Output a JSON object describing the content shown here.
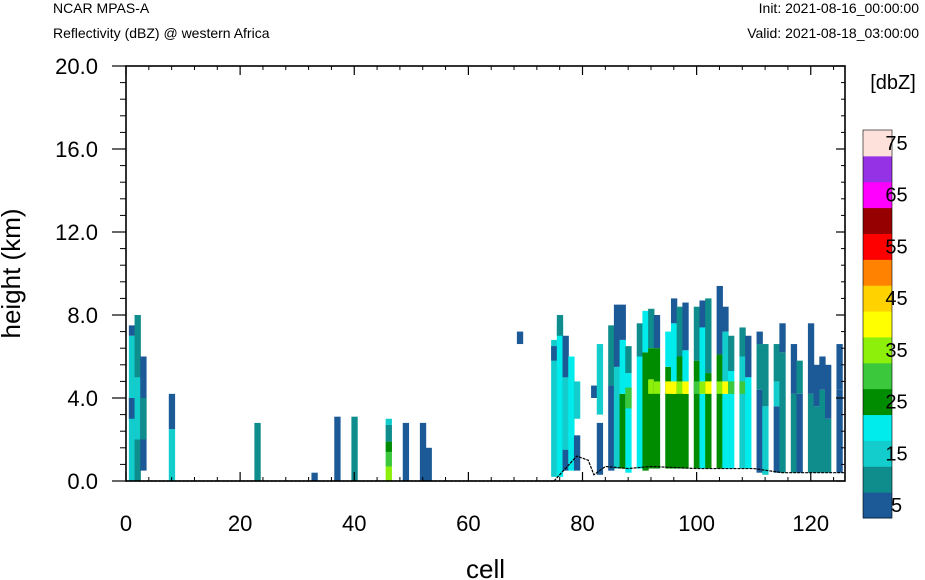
{
  "header": {
    "model": "NCAR MPAS-A",
    "field": "Reflectivity (dBZ) @ western Africa",
    "init": "Init: 2021-08-16_00:00:00",
    "valid": "Valid: 2021-08-18_03:00:00"
  },
  "chart_data": {
    "type": "heatmap",
    "title": "Reflectivity (dBZ) @ western Africa",
    "xlabel": "cell",
    "ylabel": "height (km)",
    "xlim": [
      0,
      126
    ],
    "ylim": [
      0,
      20
    ],
    "xticks": [
      0,
      20,
      40,
      60,
      80,
      100,
      120
    ],
    "yticks": [
      0.0,
      4.0,
      8.0,
      12.0,
      16.0,
      20.0
    ],
    "ytick_labels": [
      "0.0",
      "4.0",
      "8.0",
      "12.0",
      "16.0",
      "20.0"
    ],
    "colorbar": {
      "unit": "[dbZ]",
      "levels": [
        5,
        10,
        15,
        20,
        25,
        30,
        35,
        40,
        45,
        50,
        55,
        60,
        65,
        70,
        75
      ],
      "labeled_levels": [
        "5",
        "15",
        "25",
        "35",
        "45",
        "55",
        "65",
        "75"
      ],
      "colors": [
        "#1b5a96",
        "#0f8c8c",
        "#13cdcd",
        "#00ebeb",
        "#008c00",
        "#3cc83c",
        "#8cf00a",
        "#ffff00",
        "#ffd200",
        "#ff8200",
        "#ff0000",
        "#960000",
        "#ff00ff",
        "#9632e6",
        "#ffe1dc"
      ]
    },
    "columns": [
      {
        "x": 1,
        "segments": [
          [
            0,
            7,
            15
          ],
          [
            3,
            4,
            5
          ],
          [
            7,
            7.5,
            5
          ]
        ]
      },
      {
        "x": 2,
        "segments": [
          [
            0,
            8,
            10
          ],
          [
            2,
            5,
            15
          ]
        ]
      },
      {
        "x": 3,
        "segments": [
          [
            0.5,
            6,
            5
          ],
          [
            2,
            4,
            10
          ]
        ]
      },
      {
        "x": 8,
        "segments": [
          [
            0,
            2.5,
            15
          ],
          [
            2.5,
            4.2,
            5
          ]
        ]
      },
      {
        "x": 23,
        "segments": [
          [
            0,
            2.8,
            10
          ]
        ]
      },
      {
        "x": 33,
        "segments": [
          [
            0,
            0.4,
            5
          ]
        ]
      },
      {
        "x": 37,
        "segments": [
          [
            0,
            3.1,
            5
          ]
        ]
      },
      {
        "x": 40,
        "segments": [
          [
            0,
            3.1,
            10
          ]
        ]
      },
      {
        "x": 46,
        "segments": [
          [
            0,
            0.7,
            35
          ],
          [
            0.7,
            1.4,
            30
          ],
          [
            1.4,
            1.9,
            25
          ],
          [
            1.9,
            2.7,
            10
          ],
          [
            2.7,
            3.0,
            15
          ]
        ]
      },
      {
        "x": 49,
        "segments": [
          [
            0,
            2.8,
            5
          ]
        ]
      },
      {
        "x": 52,
        "segments": [
          [
            0,
            2.8,
            5
          ]
        ]
      },
      {
        "x": 53,
        "segments": [
          [
            0,
            1.6,
            5
          ]
        ]
      },
      {
        "x": 69,
        "segments": [
          [
            6.6,
            7.2,
            5
          ]
        ]
      },
      {
        "x": 75,
        "segments": [
          [
            0.2,
            6.8,
            15
          ],
          [
            5.8,
            6.5,
            5
          ]
        ]
      },
      {
        "x": 76,
        "segments": [
          [
            0.2,
            7.6,
            20
          ],
          [
            7,
            8,
            10
          ]
        ]
      },
      {
        "x": 77,
        "segments": [
          [
            0.5,
            7,
            5
          ],
          [
            1.5,
            5,
            15
          ]
        ]
      },
      {
        "x": 78,
        "segments": [
          [
            0.5,
            6,
            20
          ]
        ]
      },
      {
        "x": 79,
        "segments": [
          [
            0.5,
            2.2,
            5
          ],
          [
            3,
            4.8,
            15
          ]
        ]
      },
      {
        "x": 82,
        "segments": [
          [
            4,
            4.6,
            5
          ]
        ]
      },
      {
        "x": 83,
        "segments": [
          [
            0.3,
            2.8,
            5
          ],
          [
            3.2,
            6.6,
            15
          ]
        ]
      },
      {
        "x": 85,
        "segments": [
          [
            0.5,
            4.6,
            5
          ],
          [
            4.6,
            7.5,
            10
          ]
        ]
      },
      {
        "x": 86,
        "segments": [
          [
            0.6,
            5.5,
            15
          ],
          [
            5.5,
            8.5,
            5
          ]
        ]
      },
      {
        "x": 87,
        "segments": [
          [
            0.6,
            4.2,
            25
          ],
          [
            4.2,
            6.8,
            20
          ],
          [
            6.8,
            8.5,
            5
          ]
        ]
      },
      {
        "x": 88,
        "segments": [
          [
            0.4,
            5.2,
            20
          ],
          [
            3.5,
            4.5,
            30
          ],
          [
            5.2,
            6.5,
            10
          ]
        ]
      },
      {
        "x": 90,
        "segments": [
          [
            0.6,
            6.0,
            20
          ],
          [
            6,
            7.6,
            10
          ]
        ]
      },
      {
        "x": 91,
        "segments": [
          [
            0.5,
            6.2,
            25
          ],
          [
            6.2,
            8.2,
            20
          ]
        ]
      },
      {
        "x": 92,
        "segments": [
          [
            0.6,
            4.8,
            25
          ],
          [
            4.2,
            4.9,
            35
          ],
          [
            4.9,
            6.4,
            25
          ],
          [
            6.4,
            8.3,
            10
          ]
        ]
      },
      {
        "x": 93,
        "segments": [
          [
            0.6,
            6.4,
            25
          ],
          [
            4.2,
            4.8,
            35
          ],
          [
            6.4,
            8.0,
            5
          ]
        ]
      },
      {
        "x": 95,
        "segments": [
          [
            0.6,
            5.5,
            25
          ],
          [
            4.2,
            4.8,
            40
          ],
          [
            5.5,
            7.2,
            20
          ]
        ]
      },
      {
        "x": 96,
        "segments": [
          [
            0.6,
            4.2,
            25
          ],
          [
            4.2,
            4.8,
            40
          ],
          [
            4.8,
            7.6,
            20
          ],
          [
            7.6,
            8.8,
            5
          ]
        ]
      },
      {
        "x": 97,
        "segments": [
          [
            0.6,
            6.0,
            25
          ],
          [
            4.2,
            4.8,
            35
          ],
          [
            6.0,
            8.4,
            10
          ]
        ]
      },
      {
        "x": 98,
        "segments": [
          [
            0.6,
            4.2,
            25
          ],
          [
            4.2,
            4.8,
            40
          ],
          [
            4.8,
            6.3,
            20
          ],
          [
            6.3,
            8.6,
            5
          ]
        ]
      },
      {
        "x": 100,
        "segments": [
          [
            0.6,
            5.8,
            25
          ],
          [
            4.2,
            4.8,
            30
          ],
          [
            5.8,
            8.4,
            10
          ]
        ]
      },
      {
        "x": 101,
        "segments": [
          [
            0.6,
            4.2,
            20
          ],
          [
            4.2,
            4.8,
            35
          ],
          [
            4.8,
            7.4,
            20
          ],
          [
            7.4,
            8.7,
            5
          ]
        ]
      },
      {
        "x": 102,
        "segments": [
          [
            0.6,
            5.2,
            25
          ],
          [
            4.2,
            4.8,
            40
          ],
          [
            5.2,
            8.8,
            10
          ]
        ]
      },
      {
        "x": 104,
        "segments": [
          [
            0.6,
            6.1,
            25
          ],
          [
            4.2,
            4.8,
            35
          ],
          [
            6.1,
            9.4,
            5
          ]
        ]
      },
      {
        "x": 105,
        "segments": [
          [
            0.6,
            4.2,
            20
          ],
          [
            4.2,
            4.8,
            40
          ],
          [
            4.8,
            7.2,
            15
          ],
          [
            7.2,
            8.4,
            5
          ]
        ]
      },
      {
        "x": 106,
        "segments": [
          [
            0.6,
            5.3,
            20
          ],
          [
            4.2,
            4.8,
            30
          ],
          [
            5.3,
            7.0,
            10
          ]
        ]
      },
      {
        "x": 108,
        "segments": [
          [
            0.6,
            6.0,
            15
          ],
          [
            4.2,
            4.8,
            30
          ],
          [
            6.0,
            7.4,
            10
          ]
        ]
      },
      {
        "x": 109,
        "segments": [
          [
            0.6,
            5.0,
            20
          ],
          [
            5.0,
            7.0,
            5
          ]
        ]
      },
      {
        "x": 111,
        "segments": [
          [
            0.4,
            4.4,
            5
          ],
          [
            4.4,
            6.6,
            10
          ],
          [
            6.6,
            7.2,
            5
          ]
        ]
      },
      {
        "x": 112,
        "segments": [
          [
            0.3,
            3.6,
            15
          ],
          [
            3.6,
            6.6,
            10
          ]
        ]
      },
      {
        "x": 114,
        "segments": [
          [
            0.4,
            3.6,
            5
          ],
          [
            3.6,
            4.8,
            15
          ],
          [
            4.8,
            6.6,
            10
          ]
        ]
      },
      {
        "x": 115,
        "segments": [
          [
            0.4,
            6.2,
            10
          ],
          [
            6.2,
            7.6,
            5
          ]
        ]
      },
      {
        "x": 117,
        "segments": [
          [
            0.4,
            4.2,
            10
          ],
          [
            4.2,
            6.6,
            5
          ]
        ]
      },
      {
        "x": 118,
        "segments": [
          [
            0.4,
            4.2,
            5
          ],
          [
            4.2,
            5.8,
            10
          ]
        ]
      },
      {
        "x": 120,
        "segments": [
          [
            0.4,
            4.2,
            10
          ],
          [
            4.2,
            7.6,
            5
          ]
        ]
      },
      {
        "x": 121,
        "segments": [
          [
            0.4,
            3.6,
            10
          ],
          [
            3.6,
            5.6,
            5
          ]
        ]
      },
      {
        "x": 122,
        "segments": [
          [
            0.4,
            4.4,
            10
          ],
          [
            4.4,
            6.0,
            5
          ]
        ]
      },
      {
        "x": 123,
        "segments": [
          [
            0.4,
            3.0,
            10
          ],
          [
            3.0,
            5.6,
            5
          ]
        ]
      },
      {
        "x": 125,
        "segments": [
          [
            0.4,
            4.4,
            5
          ],
          [
            4.4,
            6.6,
            5
          ]
        ]
      }
    ],
    "terrain": [
      [
        0,
        0
      ],
      [
        75,
        0
      ],
      [
        76,
        0.3
      ],
      [
        79,
        1.2
      ],
      [
        81,
        1.0
      ],
      [
        82,
        0.3
      ],
      [
        84,
        0.7
      ],
      [
        88,
        0.6
      ],
      [
        92,
        0.7
      ],
      [
        100,
        0.6
      ],
      [
        110,
        0.6
      ],
      [
        115,
        0.4
      ],
      [
        126,
        0.4
      ]
    ],
    "grid": false,
    "legend": "right"
  }
}
